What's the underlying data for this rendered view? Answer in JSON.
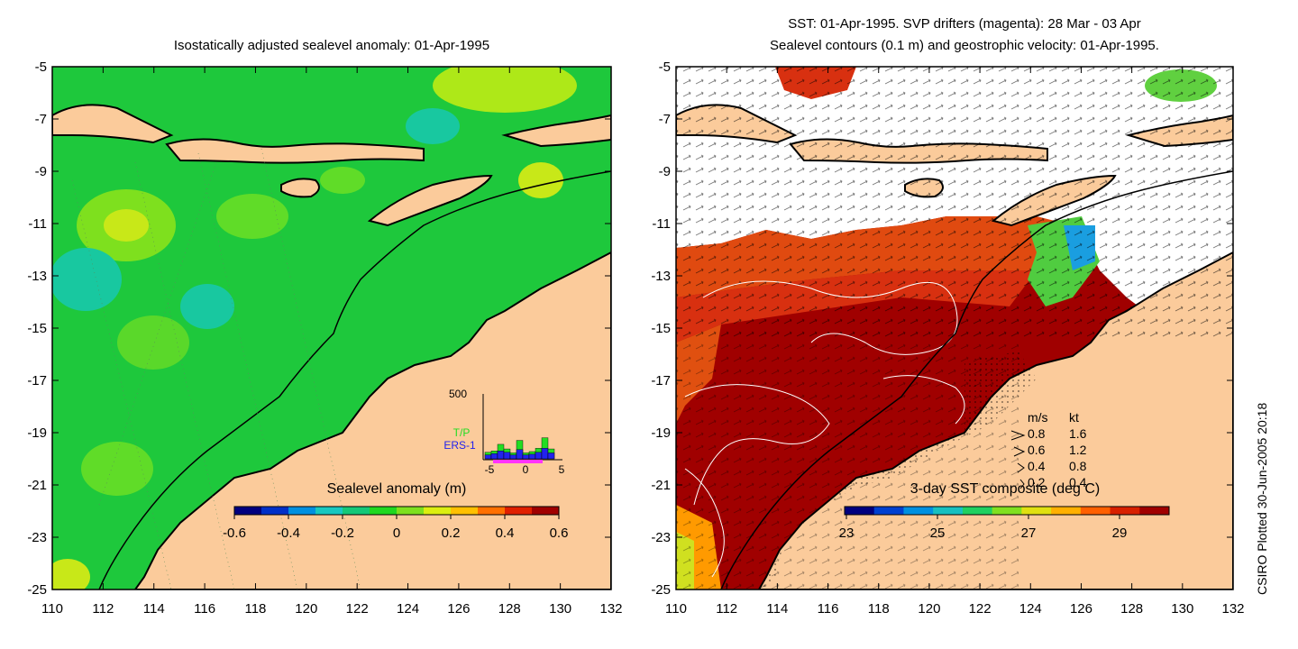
{
  "left_panel": {
    "title": "Isostatically adjusted sealevel anomaly: 01-Apr-1995",
    "colorbar": {
      "label": "Sealevel anomaly (m)",
      "ticks": [
        "-0.6",
        "-0.4",
        "-0.2",
        "0",
        "0.2",
        "0.4",
        "0.6"
      ],
      "colors": [
        "#00007f",
        "#0030c8",
        "#0090e0",
        "#18c8c0",
        "#14c878",
        "#20d820",
        "#7ee01e",
        "#dcee10",
        "#ffc000",
        "#ff7000",
        "#e02000",
        "#a00000"
      ]
    },
    "histogram": {
      "ymax_label": "500",
      "legend_tp": "T/P",
      "legend_ers": "ERS-1",
      "x_ticks": [
        "-5",
        "0",
        "5"
      ],
      "tp_color": "#22dd22",
      "ers_color": "#2222ee",
      "bars_tp": [
        50,
        60,
        110,
        75,
        45,
        140,
        45,
        55,
        80,
        160,
        75
      ],
      "bars_ers": [
        30,
        40,
        60,
        50,
        30,
        70,
        30,
        35,
        50,
        80,
        45
      ]
    }
  },
  "right_panel": {
    "title_line1": "SST: 01-Apr-1995. SVP drifters (magenta): 28 Mar - 03 Apr",
    "title_line2": "Sealevel contours (0.1 m) and geostrophic velocity: 01-Apr-1995.",
    "colorbar": {
      "label": "3-day SST composite (deg C)",
      "ticks": [
        "23",
        "25",
        "27",
        "29"
      ],
      "colors": [
        "#00007f",
        "#0040d0",
        "#0090e0",
        "#18c0c0",
        "#20d060",
        "#80e020",
        "#e0e010",
        "#ffb000",
        "#ff6000",
        "#d82000",
        "#a00000"
      ]
    },
    "velocity_legend": {
      "header_ms": "m/s",
      "header_kt": "kt",
      "rows": [
        {
          "ms": "0.8",
          "kt": "1.6"
        },
        {
          "ms": "0.6",
          "kt": "1.2"
        },
        {
          "ms": "0.4",
          "kt": "0.8"
        },
        {
          "ms": "0.2",
          "kt": "0.4"
        }
      ]
    }
  },
  "axes": {
    "y_labels": [
      "-5",
      "-7",
      "-9",
      "-11",
      "-13",
      "-15",
      "-17",
      "-19",
      "-21",
      "-23",
      "-25"
    ],
    "x_labels": [
      "110",
      "112",
      "114",
      "116",
      "118",
      "120",
      "122",
      "124",
      "126",
      "128",
      "130",
      "132"
    ]
  },
  "colors": {
    "land": "#fbcb9b",
    "ocean_anomaly": "#1ec83c",
    "sst_warm": "#a00000",
    "sst_cloud": "#ffffff"
  },
  "credit": "CSIRO Plotted 30-Jun-2005 20:18"
}
